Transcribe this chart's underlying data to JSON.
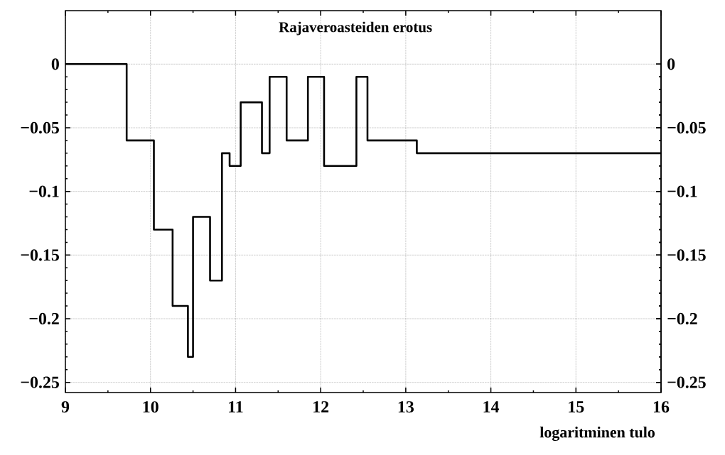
{
  "chart_data": {
    "type": "step",
    "title": "Rajaveroasteiden erotus",
    "xlabel": "logaritminen tulo",
    "x": [
      9,
      9.72,
      10.04,
      10.26,
      10.44,
      10.5,
      10.7,
      10.84,
      10.93,
      11.06,
      11.31,
      11.4,
      11.6,
      11.85,
      12.04,
      12.42,
      12.55,
      13.13,
      16
    ],
    "values": [
      0,
      -0.06,
      -0.13,
      -0.19,
      -0.23,
      -0.12,
      -0.17,
      -0.07,
      -0.08,
      -0.03,
      -0.07,
      -0.01,
      -0.06,
      -0.01,
      -0.08,
      -0.01,
      -0.06,
      -0.07,
      -0.07
    ],
    "color": "#000000",
    "line_style": "solid",
    "marker": "none",
    "grid": true,
    "xlim": [
      9,
      16
    ],
    "xticks": [
      9,
      10,
      11,
      12,
      13,
      14,
      15,
      16
    ],
    "ylim": [
      -0.258,
      0.042
    ],
    "yticks": [
      {
        "value": 0,
        "label": "0"
      },
      {
        "value": -0.05,
        "label": "−0.05"
      },
      {
        "value": -0.1,
        "label": "−0.1"
      },
      {
        "value": -0.15,
        "label": "−0.15"
      },
      {
        "value": -0.2,
        "label": "−0.2"
      },
      {
        "value": -0.25,
        "label": "−0.25"
      }
    ],
    "y2lim": [
      -0.258,
      0.042
    ],
    "y2ticks": [
      {
        "value": 0,
        "label": "0"
      },
      {
        "value": -0.05,
        "label": "−0.05"
      },
      {
        "value": -0.1,
        "label": "−0.1"
      },
      {
        "value": -0.15,
        "label": "−0.15"
      },
      {
        "value": -0.2,
        "label": "−0.2"
      },
      {
        "value": -0.25,
        "label": "−0.25"
      }
    ]
  }
}
